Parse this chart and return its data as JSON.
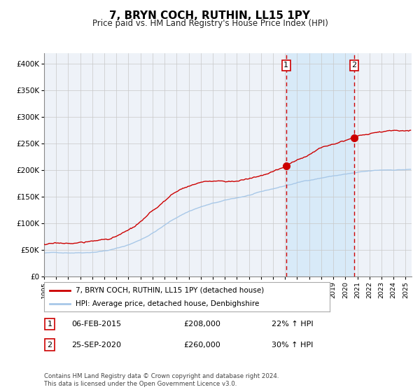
{
  "title": "7, BRYN COCH, RUTHIN, LL15 1PY",
  "subtitle": "Price paid vs. HM Land Registry's House Price Index (HPI)",
  "xlim_start": 1995.0,
  "xlim_end": 2025.5,
  "ylim": [
    0,
    420000
  ],
  "yticks": [
    0,
    50000,
    100000,
    150000,
    200000,
    250000,
    300000,
    350000,
    400000
  ],
  "ytick_labels": [
    "£0",
    "£50K",
    "£100K",
    "£150K",
    "£200K",
    "£250K",
    "£300K",
    "£350K",
    "£400K"
  ],
  "xtick_years": [
    1995,
    1996,
    1997,
    1998,
    1999,
    2000,
    2001,
    2002,
    2003,
    2004,
    2005,
    2006,
    2007,
    2008,
    2009,
    2010,
    2011,
    2012,
    2013,
    2014,
    2015,
    2016,
    2017,
    2018,
    2019,
    2020,
    2021,
    2022,
    2023,
    2024,
    2025
  ],
  "hpi_color": "#a8c8e8",
  "sale_color": "#cc0000",
  "marker_color": "#cc0000",
  "vline_color": "#cc0000",
  "shade_color": "#d8eaf8",
  "sale1_x": 2015.09,
  "sale1_y": 208000,
  "sale2_x": 2020.73,
  "sale2_y": 260000,
  "legend_sale_label": "7, BRYN COCH, RUTHIN, LL15 1PY (detached house)",
  "legend_hpi_label": "HPI: Average price, detached house, Denbighshire",
  "note1_num": "1",
  "note1_date": "06-FEB-2015",
  "note1_price": "£208,000",
  "note1_pct": "22% ↑ HPI",
  "note2_num": "2",
  "note2_date": "25-SEP-2020",
  "note2_price": "£260,000",
  "note2_pct": "30% ↑ HPI",
  "footer": "Contains HM Land Registry data © Crown copyright and database right 2024.\nThis data is licensed under the Open Government Licence v3.0.",
  "bg_color": "#ffffff",
  "plot_bg_color": "#eef2f8"
}
